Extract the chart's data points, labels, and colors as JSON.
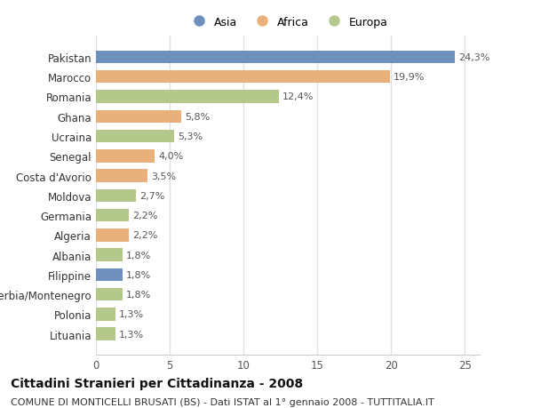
{
  "categories": [
    "Pakistan",
    "Marocco",
    "Romania",
    "Ghana",
    "Ucraina",
    "Senegal",
    "Costa d'Avorio",
    "Moldova",
    "Germania",
    "Algeria",
    "Albania",
    "Filippine",
    "Serbia/Montenegro",
    "Polonia",
    "Lituania"
  ],
  "values": [
    24.3,
    19.9,
    12.4,
    5.8,
    5.3,
    4.0,
    3.5,
    2.7,
    2.2,
    2.2,
    1.8,
    1.8,
    1.8,
    1.3,
    1.3
  ],
  "labels": [
    "24,3%",
    "19,9%",
    "12,4%",
    "5,8%",
    "5,3%",
    "4,0%",
    "3,5%",
    "2,7%",
    "2,2%",
    "2,2%",
    "1,8%",
    "1,8%",
    "1,8%",
    "1,3%",
    "1,3%"
  ],
  "colors": [
    "#6f8fbc",
    "#e8b07a",
    "#b3c88a",
    "#e8b07a",
    "#b3c88a",
    "#e8b07a",
    "#e8b07a",
    "#b3c88a",
    "#b3c88a",
    "#e8b07a",
    "#b3c88a",
    "#6f8fbc",
    "#b3c88a",
    "#b3c88a",
    "#b3c88a"
  ],
  "legend_labels": [
    "Asia",
    "Africa",
    "Europa"
  ],
  "legend_colors": [
    "#6f8fbc",
    "#e8b07a",
    "#b3c88a"
  ],
  "title": "Cittadini Stranieri per Cittadinanza - 2008",
  "subtitle": "COMUNE DI MONTICELLI BRUSATI (BS) - Dati ISTAT al 1° gennaio 2008 - TUTTITALIA.IT",
  "xlim": [
    0,
    26
  ],
  "xticks": [
    0,
    5,
    10,
    15,
    20,
    25
  ],
  "background_color": "#ffffff",
  "plot_bg_color": "#ffffff",
  "grid_color": "#e0e0e8",
  "bar_height": 0.65,
  "title_fontsize": 10,
  "subtitle_fontsize": 8,
  "tick_fontsize": 8.5,
  "label_fontsize": 8,
  "legend_fontsize": 9
}
